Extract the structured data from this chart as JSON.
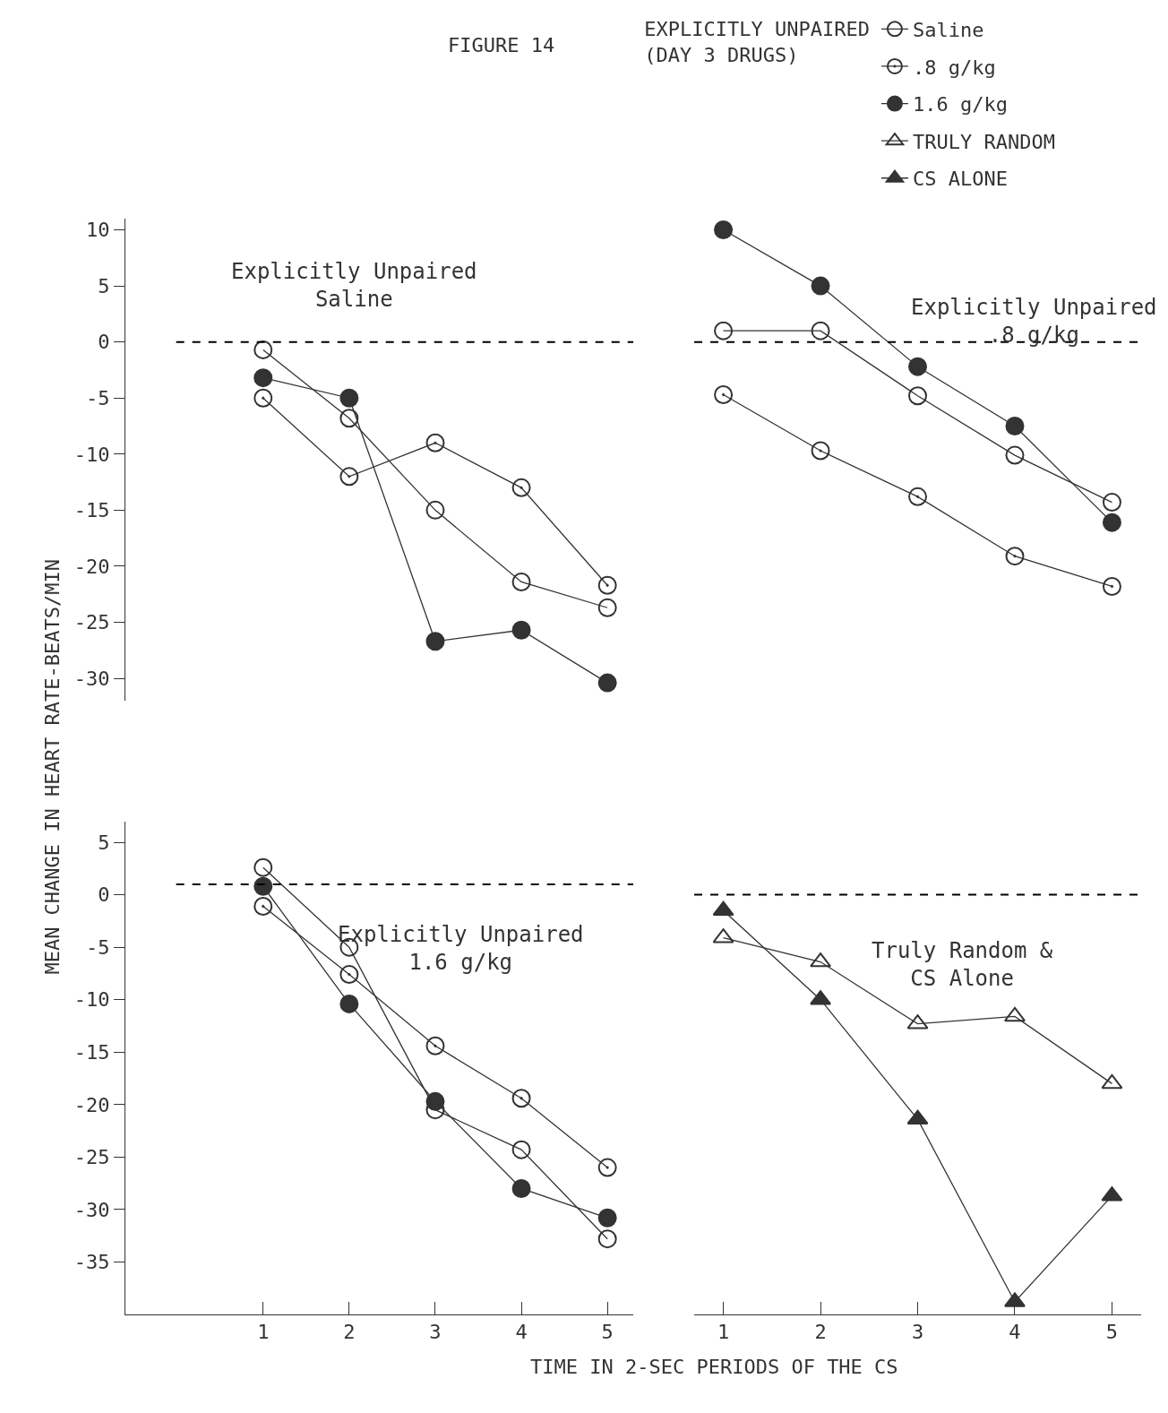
{
  "chart_data": [
    {
      "type": "line",
      "title": "FIGURE 14",
      "ylabel": "MEAN CHANGE IN HEART RATE-BEATS/MIN",
      "legend": "top right",
      "legend_title": "EXPLICITLY UNPAIRED\n(DAY 3 DRUGS)",
      "annotations": [
        "Explicitly Unpaired\nSaline"
      ],
      "x": [
        1,
        2,
        3,
        4,
        5
      ],
      "xlim": [
        -0.6,
        5.3
      ],
      "ylim": [
        -32,
        11
      ],
      "yticks": [
        -30,
        -25,
        -20,
        -15,
        -10,
        -5,
        0,
        5,
        10
      ],
      "tick_labels": "y",
      "line_style": "solid",
      "ref_lines": [
        {
          "axis": "y",
          "value": 0,
          "line_style": "dashed",
          "color": "#000000"
        }
      ],
      "series": [
        {
          "name": "Saline",
          "color": "#333333",
          "marker": "circle-open",
          "values": [
            -0.7,
            -6.8,
            -15,
            -21.4,
            -23.7
          ]
        },
        {
          "name": ".8 g/kg",
          "color": "#333333",
          "marker": "circle-dot",
          "values": [
            -5,
            -12,
            -9,
            -13,
            -21.7
          ]
        },
        {
          "name": "1.6 g/kg",
          "color": "#333333",
          "marker": "circle",
          "values": [
            -3.2,
            -5,
            -26.7,
            -25.7,
            -30.4
          ]
        }
      ]
    },
    {
      "type": "line",
      "annotations": [
        "Explicitly Unpaired\n.8 g/kg"
      ],
      "x": [
        1,
        2,
        3,
        4,
        5
      ],
      "xlim": [
        0.7,
        5.3
      ],
      "ylim": [
        -30,
        10
      ],
      "yticks": [
        -30,
        -25,
        -20,
        -15,
        -10,
        -5,
        0,
        5,
        10
      ],
      "tick_labels": false,
      "line_style": "solid",
      "ref_lines": [
        {
          "axis": "y",
          "value": 0,
          "line_style": "dashed",
          "color": "#000000"
        }
      ],
      "series": [
        {
          "color": "#333333",
          "marker": "circle-open",
          "values": [
            1,
            1,
            -4.8,
            -10.1,
            -14.3
          ]
        },
        {
          "color": "#333333",
          "marker": "circle-dot",
          "values": [
            -4.7,
            -9.7,
            -13.8,
            -19.1,
            -21.8
          ]
        },
        {
          "color": "#333333",
          "marker": "circle",
          "values": [
            10,
            5,
            -2.2,
            -7.5,
            -16.1
          ]
        }
      ]
    },
    {
      "type": "line",
      "xlabel": "TIME IN 2-SEC PERIODS OF THE CS",
      "annotations": [
        "Explicitly Unpaired\n1.6 g/kg"
      ],
      "x": [
        1,
        2,
        3,
        4,
        5
      ],
      "xlim": [
        -0.6,
        5.3
      ],
      "xticks": [
        1,
        2,
        3,
        4,
        5
      ],
      "ylim": [
        -40,
        7
      ],
      "yticks": [
        -35,
        -30,
        -25,
        -20,
        -15,
        -10,
        -5,
        0,
        5
      ],
      "line_style": "solid",
      "ref_lines": [
        {
          "axis": "y",
          "value": 1,
          "line_style": "dashed",
          "color": "#000000"
        }
      ],
      "series": [
        {
          "color": "#333333",
          "marker": "circle-open",
          "values": [
            2.6,
            -5,
            -20.5,
            -24.3,
            -32.8
          ]
        },
        {
          "color": "#333333",
          "marker": "circle-dot",
          "values": [
            -1.1,
            -7.6,
            -14.4,
            -19.4,
            -26
          ]
        },
        {
          "color": "#333333",
          "marker": "circle",
          "values": [
            0.8,
            -10.4,
            -19.7,
            -28,
            -30.8
          ]
        }
      ]
    },
    {
      "type": "line",
      "legend": "top right",
      "annotations": [
        "Truly Random &\nCS Alone"
      ],
      "x": [
        1,
        2,
        3,
        4,
        5
      ],
      "xlim": [
        0.7,
        5.3
      ],
      "xticks": [
        1,
        2,
        3,
        4,
        5
      ],
      "ylim": [
        -40,
        5
      ],
      "yticks": [
        -35,
        -30,
        -25,
        -20,
        -15,
        -10,
        -5,
        0,
        5
      ],
      "tick_labels": "x",
      "line_style": "solid",
      "ref_lines": [
        {
          "axis": "y",
          "value": 0,
          "line_style": "dashed",
          "color": "#000000"
        }
      ],
      "series": [
        {
          "name": "TRULY RANDOM",
          "color": "#333333",
          "marker": "triangle-open",
          "values": [
            -4.1,
            -6.4,
            -12.3,
            -11.6,
            -18
          ]
        },
        {
          "name": "CS ALONE",
          "color": "#333333",
          "marker": "triangle",
          "values": [
            -1.5,
            -10,
            -21.4,
            -38.8,
            -28.7
          ]
        }
      ]
    }
  ]
}
